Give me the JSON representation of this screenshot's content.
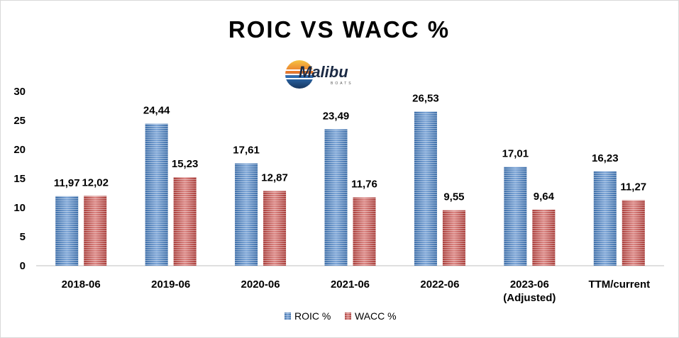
{
  "logo": {
    "text": "Malibu",
    "subtext": "BOATS"
  },
  "colors": {
    "roic": "#4f81bd",
    "wacc": "#c0504d"
  },
  "chart_data": {
    "type": "bar",
    "title": "ROIC VS WACC %",
    "categories": [
      [
        "2018-06"
      ],
      [
        "2019-06"
      ],
      [
        "2020-06"
      ],
      [
        "2021-06"
      ],
      [
        "2022-06"
      ],
      [
        "2023-06",
        "(Adjusted)"
      ],
      [
        "TTM/current"
      ]
    ],
    "series": [
      {
        "name": "ROIC %",
        "values": [
          11.97,
          24.44,
          17.61,
          23.49,
          26.53,
          17.01,
          16.23
        ],
        "labels": [
          "11,97",
          "24,44",
          "17,61",
          "23,49",
          "26,53",
          "17,01",
          "16,23"
        ]
      },
      {
        "name": "WACC %",
        "values": [
          12.02,
          15.23,
          12.87,
          11.76,
          9.55,
          9.64,
          11.27
        ],
        "labels": [
          "12,02",
          "15,23",
          "12,87",
          "11,76",
          "9,55",
          "9,64",
          "11,27"
        ]
      }
    ],
    "ylim": [
      0,
      30
    ],
    "yticks": [
      0,
      5,
      10,
      15,
      20,
      25,
      30
    ],
    "grid": false,
    "legend_position": "bottom"
  }
}
